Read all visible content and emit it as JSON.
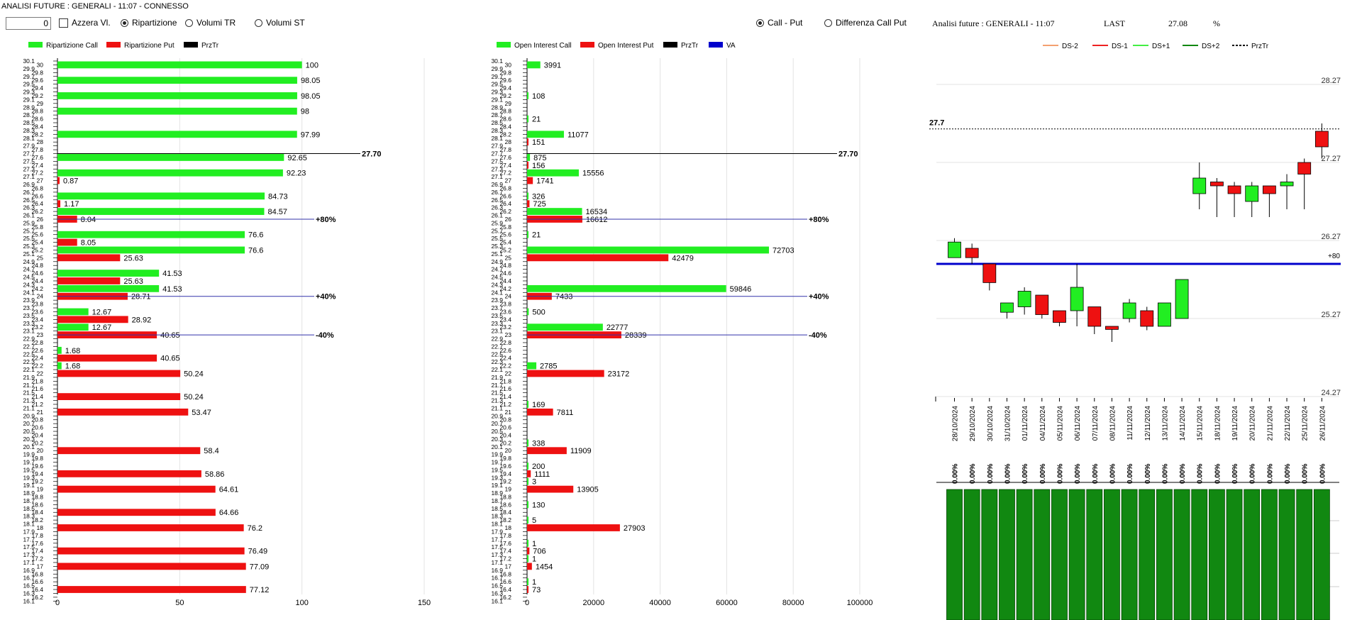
{
  "window": {
    "title": "ANALISI FUTURE : GENERALI - 11:07 - CONNESSO"
  },
  "toolbar": {
    "input_value": "0",
    "azzera_label": "Azzera Vl.",
    "options": [
      {
        "label": "Ripartizione",
        "checked": true
      },
      {
        "label": "Volumi TR",
        "checked": false
      },
      {
        "label": "Volumi ST",
        "checked": false
      }
    ],
    "mode_options": [
      {
        "label": "Call - Put",
        "checked": true
      },
      {
        "label": "Differenza Call Put",
        "checked": false
      }
    ]
  },
  "info": {
    "title": "Analisi future : GENERALI - 11:07",
    "last_label": "LAST",
    "last_value": "27.08",
    "pct_label": "%"
  },
  "colors": {
    "green": "#22ee22",
    "red": "#ee1111",
    "blue": "#0000cc",
    "dark_green": "#118811",
    "black": "#000000"
  },
  "levels": {
    "price": "27.70",
    "p80": "+80%",
    "p40": "+40%",
    "m40": "-40%"
  },
  "chart_data": [
    {
      "type": "bar",
      "orientation": "horizontal",
      "title": "Ripartizione",
      "legend": [
        {
          "name": "Ripartizione Call",
          "color": "#22ee22"
        },
        {
          "name": "Ripartizione Put",
          "color": "#ee1111"
        },
        {
          "name": "PrzTr",
          "color": "#000000"
        }
      ],
      "categories": [
        "30.1",
        "30",
        "29.9",
        "29.8",
        "29.7",
        "29.6",
        "29.5",
        "29.4",
        "29.3",
        "29.2",
        "29.1",
        "29",
        "28.9",
        "28.8",
        "28.7",
        "28.6",
        "28.5",
        "28.4",
        "28.3",
        "28.2",
        "28.1",
        "28",
        "27.9",
        "27.8",
        "27.7",
        "27.6",
        "27.5",
        "27.4",
        "27.3",
        "27.2",
        "27.1",
        "27",
        "26.9",
        "26.8",
        "26.7",
        "26.6",
        "26.5",
        "26.4",
        "26.3",
        "26.2",
        "26.1",
        "26",
        "25.9",
        "25.8",
        "25.7",
        "25.6",
        "25.5",
        "25.4",
        "25.3",
        "25.2",
        "25.1",
        "25",
        "24.9",
        "24.8",
        "24.7",
        "24.6",
        "24.5",
        "24.4",
        "24.3",
        "24.2",
        "24.1",
        "24",
        "23.9",
        "23.8",
        "23.7",
        "23.6",
        "23.5",
        "23.4",
        "23.3",
        "23.2",
        "23.1",
        "23",
        "22.9",
        "22.8",
        "22.7",
        "22.6",
        "22.5",
        "22.4",
        "22.3",
        "22.2",
        "22.1",
        "22",
        "21.9",
        "21.8",
        "21.7",
        "21.6",
        "21.5",
        "21.4",
        "21.3",
        "21.2",
        "21.1",
        "21",
        "20.9",
        "20.8",
        "20.7",
        "20.6",
        "20.5",
        "20.4",
        "20.3",
        "20.2",
        "20.1",
        "20",
        "19.9",
        "19.8",
        "19.7",
        "19.6",
        "19.5",
        "19.4",
        "19.3",
        "19.2",
        "19.1",
        "19",
        "18.9",
        "18.8",
        "18.7",
        "18.6",
        "18.5",
        "18.4",
        "18.3",
        "18.2",
        "18.1",
        "18",
        "17.9",
        "17.8",
        "17.7",
        "17.6",
        "17.5",
        "17.4",
        "17.3",
        "17.2",
        "17.1",
        "17",
        "16.9",
        "16.8",
        "16.7",
        "16.6",
        "16.5",
        "16.4",
        "16.3",
        "16.2",
        "16.1"
      ],
      "series": [
        {
          "name": "Ripartizione Call",
          "points": [
            [
              "30",
              100
            ],
            [
              "29.6",
              98.05
            ],
            [
              "29.2",
              98.05
            ],
            [
              "28.8",
              98
            ],
            [
              "28.2",
              97.99
            ],
            [
              "27.6",
              92.65
            ],
            [
              "27.2",
              92.23
            ],
            [
              "26.6",
              84.73
            ],
            [
              "26.2",
              84.57
            ],
            [
              "25.6",
              76.6
            ],
            [
              "25.2",
              76.6
            ],
            [
              "24.6",
              41.53
            ],
            [
              "24.2",
              41.53
            ],
            [
              "23.6",
              12.67
            ],
            [
              "23.2",
              12.67
            ],
            [
              "22.6",
              1.68
            ],
            [
              "22.2",
              1.68
            ]
          ]
        },
        {
          "name": "Ripartizione Put",
          "points": [
            [
              "27",
              0.87
            ],
            [
              "26.4",
              1.17
            ],
            [
              "26",
              8.04
            ],
            [
              "25.4",
              8.05
            ],
            [
              "25",
              25.63
            ],
            [
              "24.4",
              25.63
            ],
            [
              "24",
              28.71
            ],
            [
              "23.4",
              28.92
            ],
            [
              "23",
              40.65
            ],
            [
              "22.4",
              40.65
            ],
            [
              "22",
              50.24
            ],
            [
              "21.4",
              50.24
            ],
            [
              "21",
              53.47
            ],
            [
              "20",
              58.4
            ],
            [
              "19.4",
              58.86
            ],
            [
              "19",
              64.61
            ],
            [
              "18.4",
              64.66
            ],
            [
              "18",
              76.2
            ],
            [
              "17.4",
              76.49
            ],
            [
              "17",
              77.09
            ],
            [
              "16.4",
              77.12
            ]
          ]
        }
      ],
      "xlim": [
        0,
        150
      ],
      "xticks": [
        "0",
        "50",
        "100",
        "150"
      ]
    },
    {
      "type": "bar",
      "orientation": "horizontal",
      "title": "Open Interest",
      "legend": [
        {
          "name": "Open Interest Call",
          "color": "#22ee22"
        },
        {
          "name": "Open Interest Put",
          "color": "#ee1111"
        },
        {
          "name": "PrzTr",
          "color": "#000000"
        },
        {
          "name": "VA",
          "color": "#0000cc"
        }
      ],
      "series": [
        {
          "name": "Open Interest Call",
          "points": [
            [
              "30",
              3991
            ],
            [
              "29.2",
              108
            ],
            [
              "28.6",
              21
            ],
            [
              "28.2",
              11077
            ],
            [
              "27.6",
              875
            ],
            [
              "27.2",
              15556
            ],
            [
              "26.6",
              326
            ],
            [
              "26.2",
              16534
            ],
            [
              "25.6",
              21
            ],
            [
              "25.2",
              72703
            ],
            [
              "24.2",
              59846
            ],
            [
              "23.6",
              500
            ],
            [
              "23.2",
              22777
            ],
            [
              "22.2",
              2785
            ],
            [
              "21.2",
              169
            ],
            [
              "20.2",
              338
            ],
            [
              "19.6",
              200
            ],
            [
              "19.2",
              3
            ],
            [
              "18.6",
              130
            ],
            [
              "18.2",
              5
            ],
            [
              "17.6",
              1
            ],
            [
              "17.2",
              1
            ],
            [
              "16.6",
              1
            ]
          ]
        },
        {
          "name": "Open Interest Put",
          "points": [
            [
              "28",
              151
            ],
            [
              "27.4",
              156
            ],
            [
              "27",
              1741
            ],
            [
              "26.4",
              725
            ],
            [
              "26",
              16612
            ],
            [
              "25",
              42479
            ],
            [
              "24",
              7433
            ],
            [
              "23",
              28339
            ],
            [
              "22",
              23172
            ],
            [
              "21",
              7811
            ],
            [
              "20",
              11909
            ],
            [
              "19.4",
              1111
            ],
            [
              "19",
              13905
            ],
            [
              "18",
              27903
            ],
            [
              "17.4",
              706
            ],
            [
              "17",
              1454
            ],
            [
              "16.4",
              73
            ]
          ]
        }
      ],
      "xlim": [
        0,
        100000
      ],
      "xticks": [
        "0",
        "20000",
        "40000",
        "60000",
        "80000",
        "100000"
      ]
    },
    {
      "type": "candlestick",
      "legend": [
        {
          "name": "DS-2",
          "color": "#f4a070",
          "style": "solid"
        },
        {
          "name": "DS-1",
          "color": "#ee2222",
          "style": "solid"
        },
        {
          "name": "DS+1",
          "color": "#44ee44",
          "style": "solid"
        },
        {
          "name": "DS+2",
          "color": "#118811",
          "style": "solid"
        },
        {
          "name": "PrzTr",
          "color": "#000000",
          "style": "dashed"
        }
      ],
      "dates": [
        "28/10/2024",
        "29/10/2024",
        "30/10/2024",
        "31/10/2024",
        "01/11/2024",
        "04/11/2024",
        "05/11/2024",
        "06/11/2024",
        "07/11/2024",
        "08/11/2024",
        "11/11/2024",
        "12/11/2024",
        "13/11/2024",
        "14/11/2024",
        "15/11/2024",
        "18/11/2024",
        "19/11/2024",
        "20/11/2024",
        "21/11/2024",
        "22/11/2024",
        "25/11/2024",
        "26/11/2024"
      ],
      "ohlc": [
        [
          26.05,
          26.25,
          26.05,
          26.3,
          25.85
        ],
        [
          26.17,
          26.05,
          25.97,
          26.23,
          25.97
        ],
        [
          25.97,
          25.73,
          25.63,
          25.97,
          25.63
        ],
        [
          25.35,
          25.47,
          25.27,
          25.47,
          25.27
        ],
        [
          25.42,
          25.62,
          25.32,
          25.67,
          25.32
        ],
        [
          25.57,
          25.32,
          25.27,
          25.57,
          25.27
        ],
        [
          25.37,
          25.22,
          25.17,
          25.37,
          25.17
        ],
        [
          25.37,
          25.67,
          25.17,
          25.97,
          25.17
        ],
        [
          25.42,
          25.17,
          25.07,
          25.42,
          25.07
        ],
        [
          25.17,
          25.13,
          24.97,
          25.17,
          24.97
        ],
        [
          25.27,
          25.47,
          25.22,
          25.52,
          25.22
        ],
        [
          25.37,
          25.17,
          25.12,
          25.42,
          25.12
        ],
        [
          25.17,
          25.47,
          25.17,
          25.47,
          25.17
        ],
        [
          25.27,
          25.77,
          25.27,
          25.77,
          25.27
        ],
        [
          26.87,
          27.07,
          26.67,
          27.27,
          26.67
        ],
        [
          27.02,
          26.97,
          26.57,
          27.07,
          26.57
        ],
        [
          26.97,
          26.87,
          26.57,
          27.02,
          26.57
        ],
        [
          26.77,
          26.97,
          26.57,
          27.02,
          26.57
        ],
        [
          26.97,
          26.87,
          26.57,
          26.97,
          26.57
        ],
        [
          26.97,
          27.02,
          26.67,
          27.12,
          26.67
        ],
        [
          27.27,
          27.12,
          26.67,
          27.32,
          26.67
        ],
        [
          27.67,
          27.47,
          27.32,
          27.77,
          27.32
        ]
      ],
      "ohlc_fields": [
        "open_left",
        "close_right",
        "low",
        "high",
        "low_wick"
      ],
      "yticks": [
        "28.27",
        "27.27",
        "26.27",
        "25.27",
        "24.27"
      ],
      "last_label": "27.7",
      "va_label": "+80",
      "pct_labels": [
        "0.00%",
        "0.00%",
        "0.00%",
        "0.00%",
        "0.00%",
        "0.00%",
        "0.00%",
        "0.00%",
        "0.00%",
        "0.00%",
        "0.00%",
        "0.00%",
        "0.00%",
        "0.00%",
        "0.00%",
        "0.00%",
        "0.00%",
        "0.00%",
        "0.00%",
        "0.00%",
        "0.00%",
        "0.00%"
      ]
    }
  ]
}
